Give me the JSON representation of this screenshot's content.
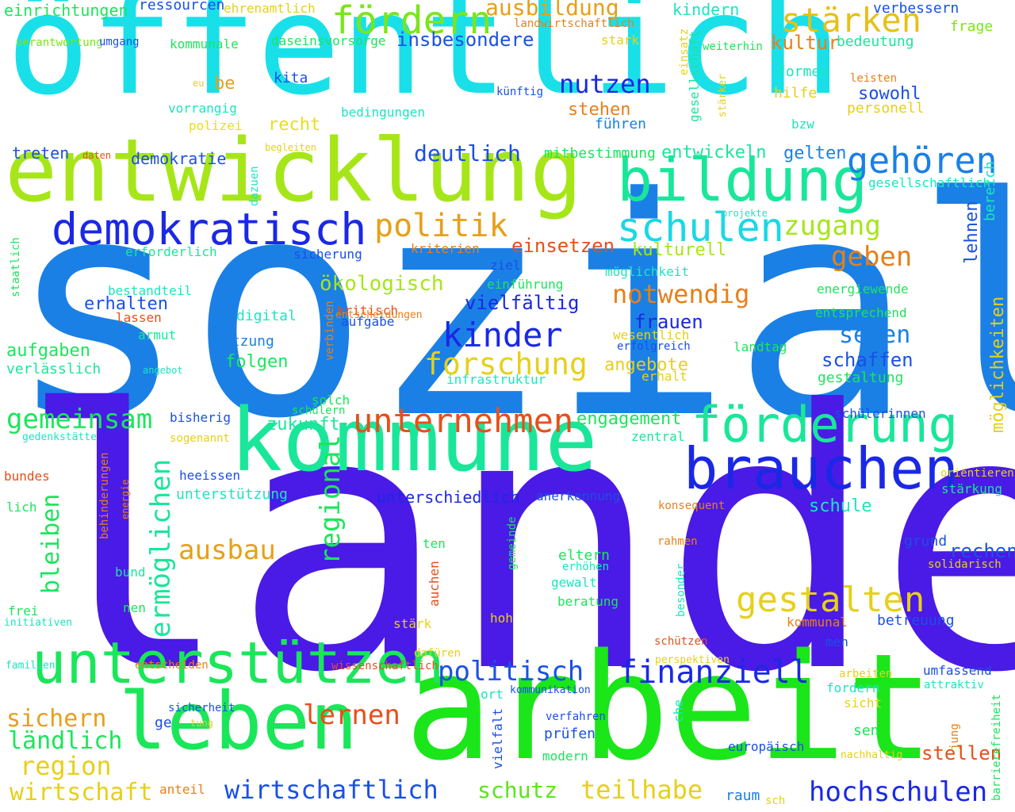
{
  "words": [
    {
      "text": "sozial",
      "color": "#1a80e6",
      "vertical": false
    },
    {
      "text": "landes",
      "color": "#4a1ae6",
      "vertical": false
    },
    {
      "text": "öffentlich",
      "color": "#19e0e8",
      "vertical": false
    },
    {
      "text": "arbeit",
      "color": "#1ae61a",
      "vertical": false
    },
    {
      "text": "entwicklung",
      "color": "#a6e619",
      "vertical": false
    },
    {
      "text": "kommune",
      "color": "#1ae69a",
      "vertical": false
    },
    {
      "text": "leben",
      "color": "#1ae65a",
      "vertical": false
    },
    {
      "text": "unterstützen",
      "color": "#1ae65a",
      "vertical": false
    },
    {
      "text": "bildung",
      "color": "#1ae69a",
      "vertical": false
    },
    {
      "text": "brauchen",
      "color": "#1a28e6",
      "vertical": false
    },
    {
      "text": "förderung",
      "color": "#1ae69a",
      "vertical": false
    },
    {
      "text": "demokratisch",
      "color": "#1a28e6",
      "vertical": false
    },
    {
      "text": "fördern",
      "color": "#7ae61a",
      "vertical": false
    },
    {
      "text": "schulen",
      "color": "#19d8e6",
      "vertical": false
    },
    {
      "text": "gehören",
      "color": "#1a80e6",
      "vertical": false
    },
    {
      "text": "stärken",
      "color": "#e6c01a",
      "vertical": false
    },
    {
      "text": "unternehmen",
      "color": "#e6501a",
      "vertical": false
    },
    {
      "text": "gestalten",
      "color": "#e6d01a",
      "vertical": false
    },
    {
      "text": "politik",
      "color": "#e6a01a",
      "vertical": false
    },
    {
      "text": "kinder",
      "color": "#1a28e6",
      "vertical": false
    },
    {
      "text": "finanziell",
      "color": "#1a28e6",
      "vertical": false
    },
    {
      "text": "forschung",
      "color": "#e6d01a",
      "vertical": false
    },
    {
      "text": "politisch",
      "color": "#1a50e6",
      "vertical": false
    },
    {
      "text": "ausbau",
      "color": "#e6a01a",
      "vertical": false
    },
    {
      "text": "lernen",
      "color": "#e6501a",
      "vertical": false
    },
    {
      "text": "zugang",
      "color": "#a6e619",
      "vertical": false
    },
    {
      "text": "gemeinsam",
      "color": "#1ae65a",
      "vertical": false
    },
    {
      "text": "geben",
      "color": "#e6801a",
      "vertical": false
    },
    {
      "text": "notwendig",
      "color": "#e6801a",
      "vertical": false
    },
    {
      "text": "nutzen",
      "color": "#1a28e6",
      "vertical": false
    },
    {
      "text": "hochschulen",
      "color": "#1a28e6",
      "vertical": false
    },
    {
      "text": "teilhabe",
      "color": "#e6d01a",
      "vertical": false
    },
    {
      "text": "wirtschaftlich",
      "color": "#1a50e6",
      "vertical": false
    },
    {
      "text": "region",
      "color": "#e6d01a",
      "vertical": false
    },
    {
      "text": "sichern",
      "color": "#e6a01a",
      "vertical": false
    },
    {
      "text": "ländlich",
      "color": "#1ae65a",
      "vertical": false
    },
    {
      "text": "wirtschaft",
      "color": "#e6d01a",
      "vertical": false
    },
    {
      "text": "schutz",
      "color": "#5ae61a",
      "vertical": false
    },
    {
      "text": "deutlich",
      "color": "#1a50e6",
      "vertical": false
    },
    {
      "text": "ausbildung",
      "color": "#e6a01a",
      "vertical": false
    },
    {
      "text": "insbesondere",
      "color": "#1a50e6",
      "vertical": false
    },
    {
      "text": "vielfältig",
      "color": "#1a28e6",
      "vertical": false
    },
    {
      "text": "einsetzen",
      "color": "#e6501a",
      "vertical": false
    },
    {
      "text": "ökologisch",
      "color": "#a6e619",
      "vertical": false
    },
    {
      "text": "frauen",
      "color": "#1a28e6",
      "vertical": false
    },
    {
      "text": "sehen",
      "color": "#1a80e6",
      "vertical": false
    },
    {
      "text": "schaffen",
      "color": "#1a50e6",
      "vertical": false
    },
    {
      "text": "engagement",
      "color": "#1ae65a",
      "vertical": false
    },
    {
      "text": "zukunft",
      "color": "#1ae69a",
      "vertical": false
    },
    {
      "text": "angebote",
      "color": "#e6d01a",
      "vertical": false
    },
    {
      "text": "entwickeln",
      "color": "#1ae69a",
      "vertical": false
    },
    {
      "text": "gelten",
      "color": "#1a80e6",
      "vertical": false
    },
    {
      "text": "kultur",
      "color": "#e6801a",
      "vertical": false
    },
    {
      "text": "kulturell",
      "color": "#a6e619",
      "vertical": false
    },
    {
      "text": "stehen",
      "color": "#e6801a",
      "vertical": false
    },
    {
      "text": "sowohl",
      "color": "#1a50e6",
      "vertical": false
    },
    {
      "text": "aufgaben",
      "color": "#1ae65a",
      "vertical": false
    },
    {
      "text": "erhalten",
      "color": "#1a50e6",
      "vertical": false
    },
    {
      "text": "folgen",
      "color": "#1ae65a",
      "vertical": false
    },
    {
      "text": "stellen",
      "color": "#e6501a",
      "vertical": false
    },
    {
      "text": "rechen",
      "color": "#1a50e6",
      "vertical": false
    },
    {
      "text": "schule",
      "color": "#1ae6c0",
      "vertical": false
    },
    {
      "text": "unterschiedlich",
      "color": "#1a28e6",
      "vertical": false
    },
    {
      "text": "recht",
      "color": "#e6e01a",
      "vertical": false
    },
    {
      "text": "be",
      "color": "#e6a01a",
      "vertical": false
    },
    {
      "text": "treten",
      "color": "#1a50e6",
      "vertical": false
    },
    {
      "text": "demokratie",
      "color": "#1a50e6",
      "vertical": false
    },
    {
      "text": "mitbestimmung",
      "color": "#1ae65a",
      "vertical": false
    },
    {
      "text": "bedingungen",
      "color": "#1ae6c0",
      "vertical": false
    },
    {
      "text": "führen",
      "color": "#1a80e6",
      "vertical": false
    },
    {
      "text": "kindern",
      "color": "#1ae6c0",
      "vertical": false
    },
    {
      "text": "verbessern",
      "color": "#1a50e6",
      "vertical": false
    },
    {
      "text": "frage",
      "color": "#7ae61a",
      "vertical": false
    },
    {
      "text": "bedeutung",
      "color": "#1ae69a",
      "vertical": false
    },
    {
      "text": "formen",
      "color": "#1ae6c0",
      "vertical": false
    },
    {
      "text": "hilfe",
      "color": "#e6d01a",
      "vertical": false
    },
    {
      "text": "leisten",
      "color": "#e6801a",
      "vertical": false
    },
    {
      "text": "personell",
      "color": "#e6d01a",
      "vertical": false
    },
    {
      "text": "bzw",
      "color": "#1ae6c0",
      "vertical": false
    },
    {
      "text": "gesellschaftlich",
      "color": "#1ae6c0",
      "vertical": false
    },
    {
      "text": "einrichtungen",
      "color": "#1ae65a",
      "vertical": false
    },
    {
      "text": "ressourcen",
      "color": "#1a50e6",
      "vertical": false
    },
    {
      "text": "ehrenamtlich",
      "color": "#e6d01a",
      "vertical": false
    },
    {
      "text": "landwirtschaftlich",
      "color": "#e6801a",
      "vertical": false
    },
    {
      "text": "verantwortung",
      "color": "#7ae61a",
      "vertical": false
    },
    {
      "text": "umgang",
      "color": "#1a50e6",
      "vertical": false
    },
    {
      "text": "kommunale",
      "color": "#1ae65a",
      "vertical": false
    },
    {
      "text": "daseinsvorsorge",
      "color": "#1ae65a",
      "vertical": false
    },
    {
      "text": "stark",
      "color": "#e6d01a",
      "vertical": false
    },
    {
      "text": "weiterhin",
      "color": "#1ae65a",
      "vertical": false
    },
    {
      "text": "eu",
      "color": "#e6d01a",
      "vertical": false
    },
    {
      "text": "kita",
      "color": "#1a50e6",
      "vertical": false
    },
    {
      "text": "künftig",
      "color": "#1a50e6",
      "vertical": false
    },
    {
      "text": "vorrangig",
      "color": "#1ae6c0",
      "vertical": false
    },
    {
      "text": "polizei",
      "color": "#e6e01a",
      "vertical": false
    },
    {
      "text": "daten",
      "color": "#e6501a",
      "vertical": false
    },
    {
      "text": "begleiten",
      "color": "#e6d01a",
      "vertical": false
    },
    {
      "text": "erforderlich",
      "color": "#1ae69a",
      "vertical": false
    },
    {
      "text": "sicherung",
      "color": "#1a50e6",
      "vertical": false
    },
    {
      "text": "kriterien",
      "color": "#e6801a",
      "vertical": false
    },
    {
      "text": "ziel",
      "color": "#1a50e6",
      "vertical": false
    },
    {
      "text": "einführung",
      "color": "#1ae65a",
      "vertical": false
    },
    {
      "text": "möglichkeit",
      "color": "#1ae6c0",
      "vertical": false
    },
    {
      "text": "energiewende",
      "color": "#1ae65a",
      "vertical": false
    },
    {
      "text": "entsprechend",
      "color": "#1ae65a",
      "vertical": false
    },
    {
      "text": "projekte",
      "color": "#1ae6c0",
      "vertical": false
    },
    {
      "text": "bestandteil",
      "color": "#1ae6c0",
      "vertical": false
    },
    {
      "text": "lassen",
      "color": "#e6501a",
      "vertical": false
    },
    {
      "text": "digital",
      "color": "#1ae6c0",
      "vertical": false
    },
    {
      "text": "kritisch",
      "color": "#e6501a",
      "vertical": false
    },
    {
      "text": "entscheidungen",
      "color": "#e6801a",
      "vertical": false
    },
    {
      "text": "aufgabe",
      "color": "#1a50e6",
      "vertical": false
    },
    {
      "text": "armut",
      "color": "#1ae69a",
      "vertical": false
    },
    {
      "text": "nutzung",
      "color": "#1a80e6",
      "vertical": false
    },
    {
      "text": "wesentlich",
      "color": "#e6d01a",
      "vertical": false
    },
    {
      "text": "erfolgreich",
      "color": "#1a50e6",
      "vertical": false
    },
    {
      "text": "landtag",
      "color": "#1ae65a",
      "vertical": false
    },
    {
      "text": "verlässlich",
      "color": "#1ae69a",
      "vertical": false
    },
    {
      "text": "angebot",
      "color": "#1ae6c0",
      "vertical": false
    },
    {
      "text": "infrastruktur",
      "color": "#1ae6c0",
      "vertical": false
    },
    {
      "text": "erhalt",
      "color": "#e6d01a",
      "vertical": false
    },
    {
      "text": "gestaltung",
      "color": "#1ae65a",
      "vertical": false
    },
    {
      "text": "solch",
      "color": "#1ae65a",
      "vertical": false
    },
    {
      "text": "schülern",
      "color": "#1ae65a",
      "vertical": false
    },
    {
      "text": "bisherig",
      "color": "#1a50e6",
      "vertical": false
    },
    {
      "text": "gedenkstätte",
      "color": "#1ae6c0",
      "vertical": false
    },
    {
      "text": "sogenannt",
      "color": "#e6d01a",
      "vertical": false
    },
    {
      "text": "zentral",
      "color": "#1ae69a",
      "vertical": false
    },
    {
      "text": "schülerinnen",
      "color": "#1a50e6",
      "vertical": false
    },
    {
      "text": "bundes",
      "color": "#e6501a",
      "vertical": false
    },
    {
      "text": "heeissen",
      "color": "#1a50e6",
      "vertical": false
    },
    {
      "text": "orientieren",
      "color": "#e6d01a",
      "vertical": false
    },
    {
      "text": "stärkung",
      "color": "#1ae69a",
      "vertical": false
    },
    {
      "text": "lich",
      "color": "#1ae65a",
      "vertical": false
    },
    {
      "text": "unterstützung",
      "color": "#1ae6c0",
      "vertical": false
    },
    {
      "text": "anerkennung",
      "color": "#1a50e6",
      "vertical": false
    },
    {
      "text": "konsequent",
      "color": "#e6801a",
      "vertical": false
    },
    {
      "text": "ten",
      "color": "#1ae65a",
      "vertical": false
    },
    {
      "text": "rahmen",
      "color": "#e6801a",
      "vertical": false
    },
    {
      "text": "grund",
      "color": "#1a50e6",
      "vertical": false
    },
    {
      "text": "solidarisch",
      "color": "#e6d01a",
      "vertical": false
    },
    {
      "text": "bund",
      "color": "#1ae69a",
      "vertical": false
    },
    {
      "text": "eltern",
      "color": "#1ae65a",
      "vertical": false
    },
    {
      "text": "erhöhen",
      "color": "#1ae6c0",
      "vertical": false
    },
    {
      "text": "gewalt",
      "color": "#1ae6c0",
      "vertical": false
    },
    {
      "text": "beratung",
      "color": "#1ae65a",
      "vertical": false
    },
    {
      "text": "frei",
      "color": "#1ae65a",
      "vertical": false
    },
    {
      "text": "initiativen",
      "color": "#1ae6c0",
      "vertical": false
    },
    {
      "text": "nen",
      "color": "#1ae65a",
      "vertical": false
    },
    {
      "text": "hoh",
      "color": "#e6d01a",
      "vertical": false
    },
    {
      "text": "stärk",
      "color": "#e6d01a",
      "vertical": false
    },
    {
      "text": "kommunal",
      "color": "#e6801a",
      "vertical": false
    },
    {
      "text": "betreuung",
      "color": "#1a50e6",
      "vertical": false
    },
    {
      "text": "men",
      "color": "#1a50e6",
      "vertical": false
    },
    {
      "text": "schützen",
      "color": "#e6501a",
      "vertical": false
    },
    {
      "text": "dafüren",
      "color": "#e6d01a",
      "vertical": false
    },
    {
      "text": "familien",
      "color": "#1ae6c0",
      "vertical": false
    },
    {
      "text": "entscheiden",
      "color": "#e6801a",
      "vertical": false
    },
    {
      "text": "wissenschaftlich",
      "color": "#e6501a",
      "vertical": false
    },
    {
      "text": "perspektiven",
      "color": "#e6d01a",
      "vertical": false
    },
    {
      "text": "arbeiten",
      "color": "#e6d01a",
      "vertical": false
    },
    {
      "text": "umfassend",
      "color": "#1a50e6",
      "vertical": false
    },
    {
      "text": "attraktiv",
      "color": "#1ae6c0",
      "vertical": false
    },
    {
      "text": "kommunikation",
      "color": "#1a50e6",
      "vertical": false
    },
    {
      "text": "ort",
      "color": "#1ae6c0",
      "vertical": false
    },
    {
      "text": "fordern",
      "color": "#1ae6c0",
      "vertical": false
    },
    {
      "text": "sicht",
      "color": "#e6d01a",
      "vertical": false
    },
    {
      "text": "sicherheit",
      "color": "#1a50e6",
      "vertical": false
    },
    {
      "text": "ge",
      "color": "#1a50e6",
      "vertical": false
    },
    {
      "text": "tung",
      "color": "#e6d01a",
      "vertical": false
    },
    {
      "text": "verfahren",
      "color": "#1a50e6",
      "vertical": false
    },
    {
      "text": "prüfen",
      "color": "#1a50e6",
      "vertical": false
    },
    {
      "text": "modern",
      "color": "#1ae65a",
      "vertical": false
    },
    {
      "text": "sen",
      "color": "#1ae65a",
      "vertical": false
    },
    {
      "text": "europäisch",
      "color": "#1a50e6",
      "vertical": false
    },
    {
      "text": "nachhaltig",
      "color": "#e6d01a",
      "vertical": false
    },
    {
      "text": "anteil",
      "color": "#e6801a",
      "vertical": false
    },
    {
      "text": "raum",
      "color": "#1a80e6",
      "vertical": false
    },
    {
      "text": "sch",
      "color": "#e6d01a",
      "vertical": false
    },
    {
      "text": "ermöglichen",
      "color": "#1ae69a",
      "vertical": true
    },
    {
      "text": "regional",
      "color": "#1ae65a",
      "vertical": true
    },
    {
      "text": "bleiben",
      "color": "#1ae65a",
      "vertical": true
    },
    {
      "text": "möglichkeiten",
      "color": "#e6d01a",
      "vertical": true
    },
    {
      "text": "lehnen",
      "color": "#1a50e6",
      "vertical": true
    },
    {
      "text": "bereich",
      "color": "#1ae6c0",
      "vertical": true
    },
    {
      "text": "gesellschaft",
      "color": "#1ae69a",
      "vertical": true
    },
    {
      "text": "einsatz",
      "color": "#e6d01a",
      "vertical": true
    },
    {
      "text": "stärker",
      "color": "#e6d01a",
      "vertical": true
    },
    {
      "text": "dazuen",
      "color": "#1ae6c0",
      "vertical": true
    },
    {
      "text": "staatlich",
      "color": "#1ae65a",
      "vertical": true
    },
    {
      "text": "verbinden",
      "color": "#e6801a",
      "vertical": true
    },
    {
      "text": "behinderungen",
      "color": "#e6801a",
      "vertical": true
    },
    {
      "text": "energie",
      "color": "#e6801a",
      "vertical": true
    },
    {
      "text": "gemeinde",
      "color": "#1ae65a",
      "vertical": true
    },
    {
      "text": "auchen",
      "color": "#e6501a",
      "vertical": true
    },
    {
      "text": "besonder",
      "color": "#1ae6c0",
      "vertical": true
    },
    {
      "text": "vielfalt",
      "color": "#1a50e6",
      "vertical": true
    },
    {
      "text": "che",
      "color": "#1ae6c0",
      "vertical": true
    },
    {
      "text": "jung",
      "color": "#e6801a",
      "vertical": true
    },
    {
      "text": "barrierefreiheit",
      "color": "#1ae65a",
      "vertical": true
    }
  ]
}
